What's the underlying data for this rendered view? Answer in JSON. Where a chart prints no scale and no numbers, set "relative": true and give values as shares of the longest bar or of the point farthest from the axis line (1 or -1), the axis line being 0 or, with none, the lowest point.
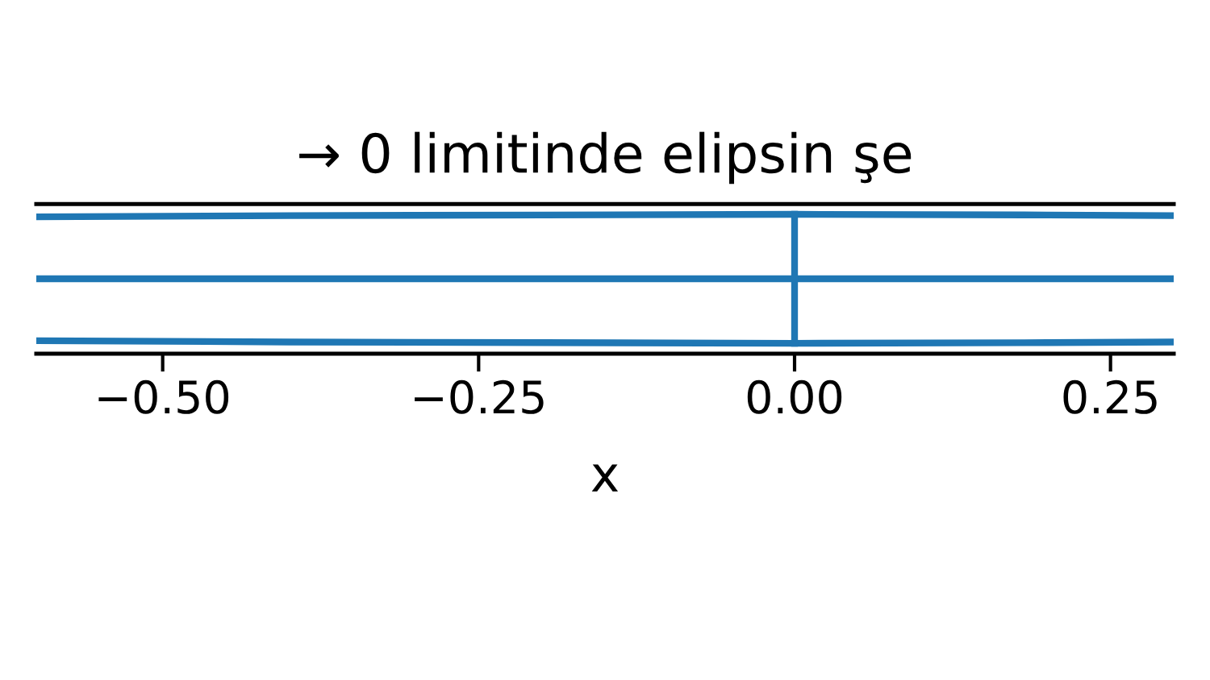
{
  "chart_data": {
    "type": "line",
    "title": "→ 0 limitinde elipsin şe",
    "xlabel": "x",
    "relative": true,
    "tick_labels": "x",
    "grid": false,
    "legend": false,
    "xlim": [
      -0.6,
      0.3
    ],
    "xticks": [
      {
        "value": -0.5,
        "label": "−0.50"
      },
      {
        "value": -0.25,
        "label": "−0.25"
      },
      {
        "value": 0,
        "label": "0.00"
      },
      {
        "value": 0.25,
        "label": "0.25"
      }
    ],
    "series": [
      {
        "color": "#1f77b4",
        "x": [
          -0.6,
          -0.4,
          -0.2,
          0,
          0.2,
          0.3
        ],
        "values": [
          0.96,
          0.98,
          0.99,
          1,
          0.99,
          0.98
        ]
      },
      {
        "color": "#1f77b4",
        "x": [
          -0.6,
          -0.4,
          -0.2,
          0,
          0.2,
          0.3
        ],
        "values": [
          -0.96,
          -0.98,
          -0.99,
          -1,
          -0.99,
          -0.98
        ]
      },
      {
        "color": "#1f77b4",
        "x": [
          -0.6,
          0.3
        ],
        "values": [
          0,
          0
        ]
      },
      {
        "color": "#1f77b4",
        "x": [
          0,
          0
        ],
        "values": [
          -1,
          1
        ]
      }
    ]
  }
}
